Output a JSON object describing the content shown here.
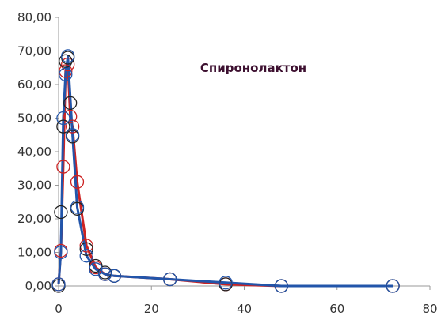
{
  "chart_data": {
    "type": "scatter",
    "title": "Спиронолактон",
    "xlabel": "",
    "ylabel": "",
    "xlim": [
      0,
      80
    ],
    "ylim": [
      0,
      80
    ],
    "x_ticks": [
      "0",
      "20",
      "40",
      "60",
      "80"
    ],
    "y_ticks": [
      "0,00",
      "10,00",
      "20,00",
      "30,00",
      "40,00",
      "50,00",
      "60,00",
      "70,00",
      "80,00"
    ],
    "grid": false,
    "legend": "none",
    "series": [
      {
        "color": "#cc2222",
        "line": true,
        "markers": true,
        "points": [
          [
            0,
            0.5
          ],
          [
            0.5,
            10.5
          ],
          [
            1,
            35.5
          ],
          [
            1.5,
            64
          ],
          [
            2,
            66
          ],
          [
            2.5,
            50.5
          ],
          [
            3,
            47.5
          ],
          [
            4,
            31
          ],
          [
            6,
            12
          ],
          [
            8,
            5.5
          ],
          [
            10,
            3.5
          ],
          [
            12,
            3
          ],
          [
            24,
            2
          ],
          [
            36,
            0.5
          ],
          [
            48,
            0
          ],
          [
            72,
            0
          ]
        ]
      },
      {
        "color": "#222222",
        "line": false,
        "markers": true,
        "points": [
          [
            0,
            0
          ],
          [
            0.5,
            22
          ],
          [
            1,
            47.5
          ],
          [
            1.5,
            67
          ],
          [
            2,
            68
          ],
          [
            2.5,
            54.5
          ],
          [
            3,
            44.5
          ],
          [
            4,
            23
          ],
          [
            6,
            11
          ],
          [
            8,
            6
          ],
          [
            10,
            4
          ],
          [
            12,
            3
          ],
          [
            24,
            2
          ],
          [
            36,
            0.5
          ],
          [
            48,
            0
          ],
          [
            72,
            0
          ]
        ]
      },
      {
        "color": "#2255aa",
        "line": true,
        "markers": true,
        "points": [
          [
            0,
            0.5
          ],
          [
            0.5,
            10
          ],
          [
            1,
            50
          ],
          [
            1.5,
            63
          ],
          [
            2,
            68.5
          ],
          [
            3,
            45
          ],
          [
            4,
            23.5
          ],
          [
            6,
            9
          ],
          [
            8,
            5
          ],
          [
            10,
            3.5
          ],
          [
            12,
            3
          ],
          [
            24,
            2
          ],
          [
            36,
            1
          ],
          [
            48,
            0
          ],
          [
            72,
            0
          ]
        ]
      }
    ]
  }
}
